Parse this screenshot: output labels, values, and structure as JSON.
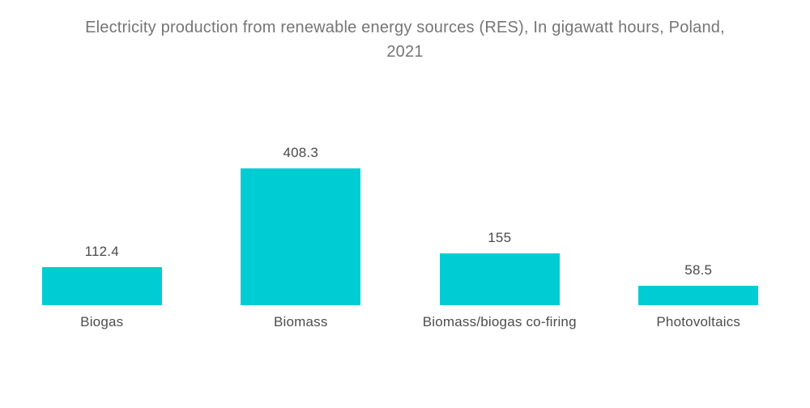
{
  "title_lines": [
    "Electricity production from renewable energy sources (RES), In gigawatt hours, Poland,",
    "2021"
  ],
  "chart_data": {
    "type": "bar",
    "title": "Electricity production from renewable energy sources (RES), In gigawatt hours, Poland, 2021",
    "categories": [
      "Biogas",
      "Biomass",
      "Biomass/biogas co-firing",
      "Photovoltaics"
    ],
    "values": [
      112.4,
      408.3,
      155,
      58.5
    ],
    "unit": "gigawatt hours",
    "xlabel": "",
    "ylabel": "",
    "ylim": [
      0,
      408.3
    ],
    "grid": false,
    "legend": false,
    "data_labels": true,
    "colors": {
      "bar": "#00cdd3",
      "title_text": "#757575",
      "value_text": "#4a4a4a",
      "category_text": "#4d4d4d",
      "background": "#ffffff"
    }
  }
}
